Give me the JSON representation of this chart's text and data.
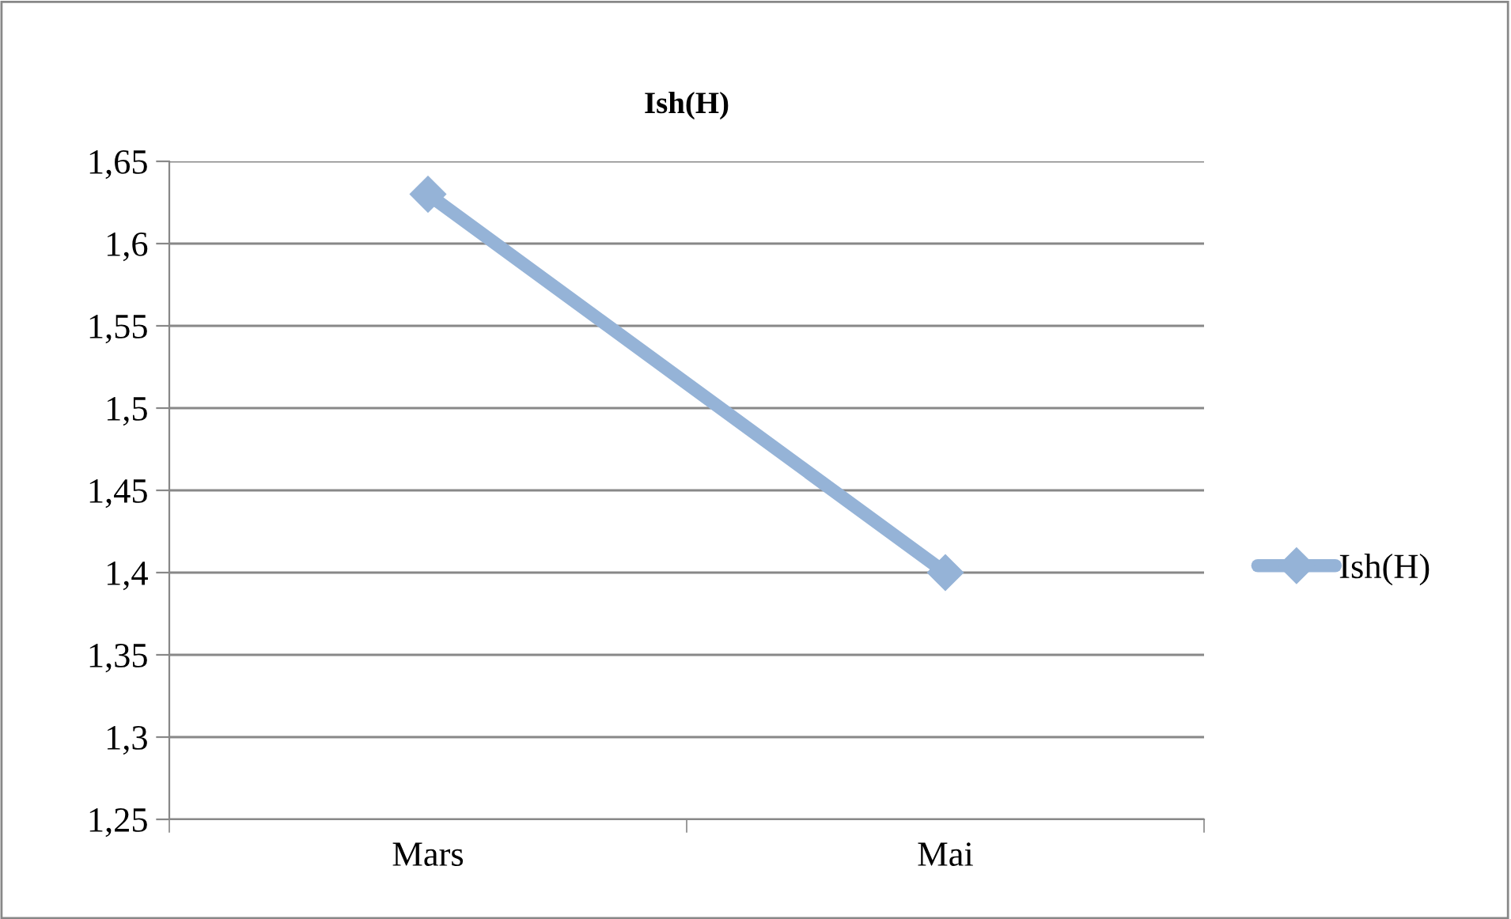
{
  "chart_data": {
    "type": "line",
    "title": "Ish(H)",
    "categories": [
      "Mars",
      "Mai"
    ],
    "series": [
      {
        "name": "Ish(H)",
        "color": "#95b3d7",
        "values": [
          1.63,
          1.4
        ]
      }
    ],
    "ylim": [
      1.25,
      1.65
    ],
    "yticks": [
      {
        "value": 1.25,
        "label": "1,25"
      },
      {
        "value": 1.3,
        "label": "1,3"
      },
      {
        "value": 1.35,
        "label": "1,35"
      },
      {
        "value": 1.4,
        "label": "1,4"
      },
      {
        "value": 1.45,
        "label": "1,45"
      },
      {
        "value": 1.5,
        "label": "1,5"
      },
      {
        "value": 1.55,
        "label": "1,55"
      },
      {
        "value": 1.6,
        "label": "1,6"
      },
      {
        "value": 1.65,
        "label": "1,65"
      }
    ],
    "grid": "y",
    "legend": "right",
    "marker": "diamond",
    "line_style": "solid"
  }
}
